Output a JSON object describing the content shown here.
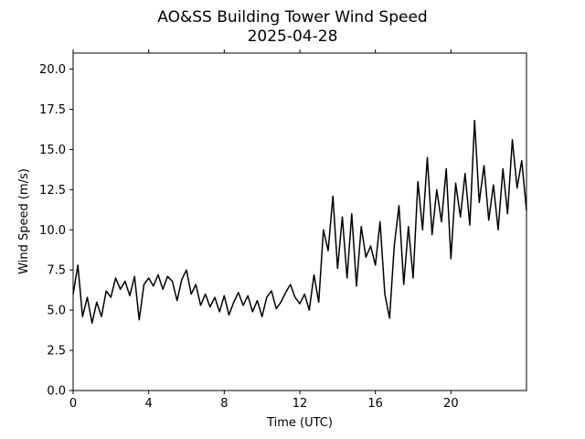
{
  "chart_data": {
    "type": "line",
    "title": "AO&SS Building Tower Wind Speed",
    "subtitle": "2025-04-28",
    "xlabel": "Time (UTC)",
    "ylabel": "Wind Speed (m/s)",
    "xlim": [
      0,
      24
    ],
    "ylim": [
      0,
      21
    ],
    "xticks": [
      0,
      4,
      8,
      12,
      16,
      20
    ],
    "xtick_labels": [
      "0",
      "4",
      "8",
      "12",
      "16",
      "20"
    ],
    "yticks": [
      0,
      2.5,
      5,
      7.5,
      10,
      12.5,
      15,
      17.5,
      20
    ],
    "ytick_labels": [
      "0.0",
      "2.5",
      "5.0",
      "7.5",
      "10.0",
      "12.5",
      "15.0",
      "17.5",
      "20.0"
    ],
    "grid": false,
    "legend": "none",
    "series": [
      {
        "color": "#000000",
        "x": [
          0.0,
          0.25,
          0.5,
          0.75,
          1.0,
          1.25,
          1.5,
          1.75,
          2.0,
          2.25,
          2.5,
          2.75,
          3.0,
          3.25,
          3.5,
          3.75,
          4.0,
          4.25,
          4.5,
          4.75,
          5.0,
          5.25,
          5.5,
          5.75,
          6.0,
          6.25,
          6.5,
          6.75,
          7.0,
          7.25,
          7.5,
          7.75,
          8.0,
          8.25,
          8.5,
          8.75,
          9.0,
          9.25,
          9.5,
          9.75,
          10.0,
          10.25,
          10.5,
          10.75,
          11.0,
          11.25,
          11.5,
          11.75,
          12.0,
          12.25,
          12.5,
          12.75,
          13.0,
          13.25,
          13.5,
          13.75,
          14.0,
          14.25,
          14.5,
          14.75,
          15.0,
          15.25,
          15.5,
          15.75,
          16.0,
          16.25,
          16.5,
          16.75,
          17.0,
          17.25,
          17.5,
          17.75,
          18.0,
          18.25,
          18.5,
          18.75,
          19.0,
          19.25,
          19.5,
          19.75,
          20.0,
          20.25,
          20.5,
          20.75,
          21.0,
          21.25,
          21.5,
          21.75,
          22.0,
          22.25,
          22.5,
          22.75,
          23.0,
          23.25,
          23.5,
          23.75,
          24.0
        ],
        "values": [
          6.0,
          7.8,
          4.6,
          5.8,
          4.2,
          5.5,
          4.6,
          6.2,
          5.8,
          7.0,
          6.3,
          6.8,
          5.9,
          7.1,
          4.4,
          6.6,
          7.0,
          6.5,
          7.2,
          6.3,
          7.1,
          6.8,
          5.6,
          6.9,
          7.5,
          6.0,
          6.6,
          5.3,
          6.0,
          5.2,
          5.8,
          4.9,
          5.9,
          4.7,
          5.5,
          6.1,
          5.3,
          5.9,
          4.9,
          5.6,
          4.6,
          5.8,
          6.2,
          5.1,
          5.5,
          6.1,
          6.6,
          5.8,
          5.4,
          6.0,
          5.0,
          7.2,
          5.5,
          10.0,
          8.7,
          12.1,
          7.6,
          10.8,
          7.0,
          11.0,
          6.5,
          10.2,
          8.3,
          9.0,
          7.8,
          10.5,
          6.0,
          4.5,
          9.0,
          11.5,
          6.6,
          10.2,
          7.0,
          13.0,
          10.0,
          14.5,
          9.7,
          12.5,
          10.5,
          13.8,
          8.2,
          12.9,
          10.8,
          13.5,
          10.3,
          16.8,
          11.7,
          14.0,
          10.6,
          12.8,
          10.0,
          13.8,
          11.0,
          15.6,
          12.6,
          14.3,
          11.2
        ]
      }
    ]
  }
}
